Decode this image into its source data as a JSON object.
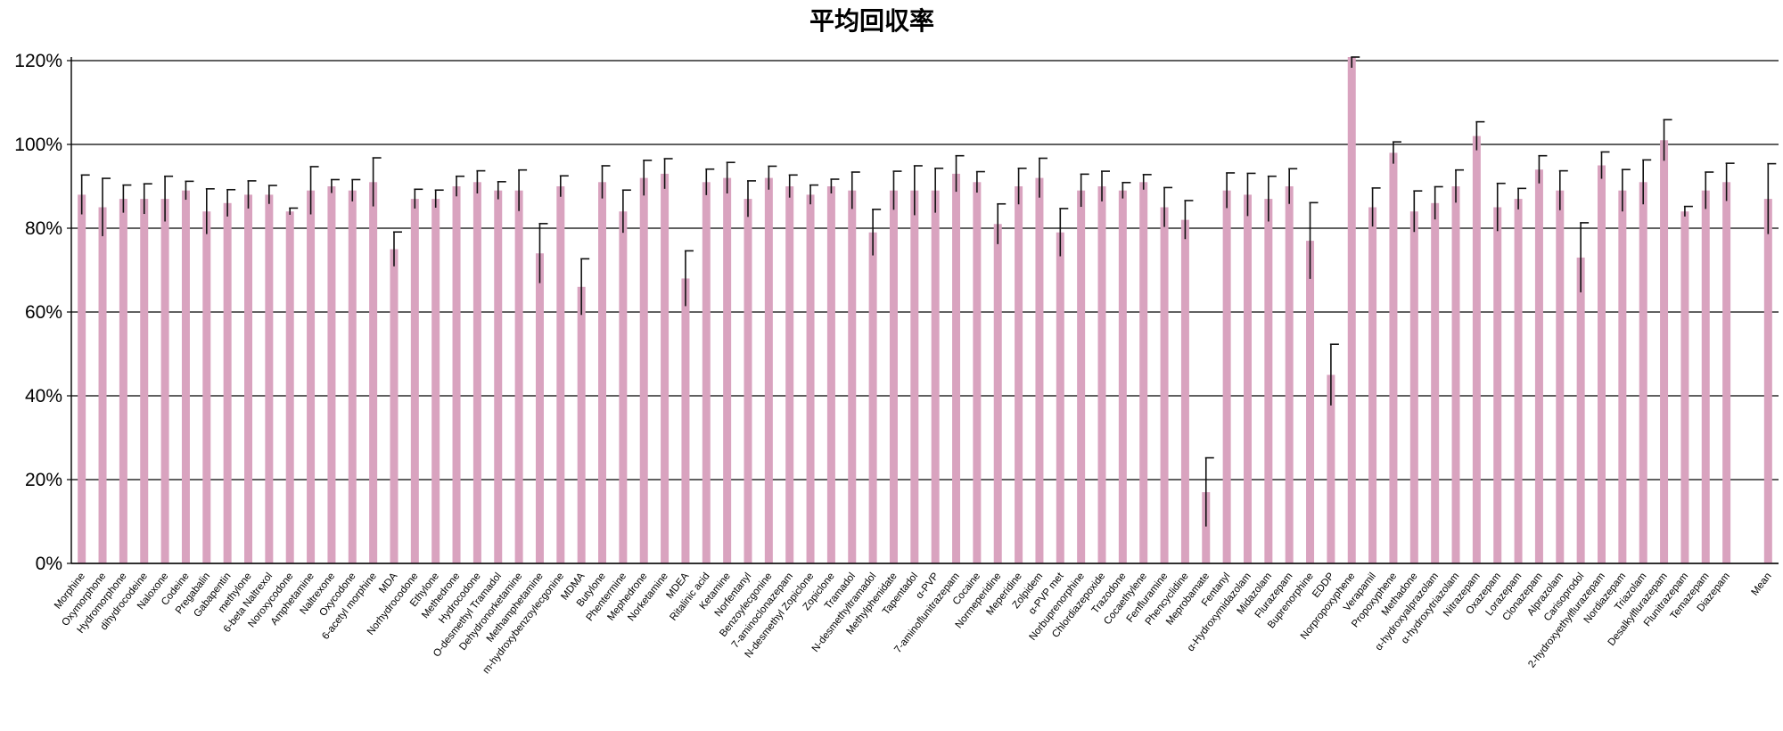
{
  "chart_data": {
    "type": "bar",
    "title": "平均回収率",
    "xlabel": "",
    "ylabel": "",
    "ylim": [
      0,
      120
    ],
    "y_ticks": [
      "0%",
      "20%",
      "40%",
      "60%",
      "80%",
      "100%",
      "120%"
    ],
    "grid": true,
    "legend": "none",
    "bar_color": "#d9a3bf",
    "error_bar_color": "#111111",
    "categories": [
      "Morphine",
      "Oxymorphone",
      "Hydromorphone",
      "dihydrocodeine",
      "Naloxone",
      "Codeine",
      "Pregabalin",
      "Gabapentin",
      "methylone",
      "6-beta Naltrexol",
      "Noroxycodone",
      "Amphetamine",
      "Naltrexone",
      "Oxycodone",
      "6-acetyl morphine",
      "MDA",
      "Norhydrocodone",
      "Ethylone",
      "Methedrone",
      "Hydrocodone",
      "O-desmethyl Tramadol",
      "Dehydronorketamine",
      "Methamphetamine",
      "m-hydroxybenzoylecgonine",
      "MDMA",
      "Butylone",
      "Phentermine",
      "Mephedrone",
      "Norketamine",
      "MDEA",
      "Ritalinic acid",
      "Ketamine",
      "Norfentanyl",
      "Benzoylecgonine",
      "7-aminoclonazepam",
      "N-desmethyl Zopiclone",
      "Zopiclone",
      "Tramadol",
      "N-desmethyltramadol",
      "Methylphenidate",
      "Tapentadol",
      "α-PVP",
      "7-aminoflunitrazepam",
      "Cocaine",
      "Normeperidine",
      "Meperidine",
      "Zolpidem",
      "α-PVP met",
      "Norbuprenorphine",
      "Chlordiazepoxide",
      "Trazodone",
      "Cocaethylene",
      "Fenfluramine",
      "Phencyclidine",
      "Meprobamate",
      "Fentanyl",
      "α-Hydroxymidazolam",
      "Midazolam",
      "Flurazepam",
      "Buprenorphine",
      "EDDP",
      "Norpropoxyphene",
      "Verapamil",
      "Propoxyphene",
      "Methadone",
      "α-hydroxyalprazolam",
      "α-hydroxytriazolam",
      "Nitrazepam",
      "Oxazepam",
      "Lorazepam",
      "Clonazepam",
      "Alprazolam",
      "Carisoprodol",
      "2-hydroxyethylflurazepam",
      "Nordiazepam",
      "Triazolam",
      "Desalkylflurazepam",
      "Flunitrazepam",
      "Temazepam",
      "Diazepam",
      "",
      "Mean"
    ],
    "values": [
      88,
      85,
      87,
      87,
      87,
      89,
      84,
      86,
      88,
      88,
      84,
      89,
      90,
      89,
      91,
      75,
      87,
      87,
      90,
      91,
      89,
      89,
      74,
      90,
      66,
      91,
      84,
      92,
      93,
      68,
      91,
      92,
      87,
      92,
      90,
      88,
      90,
      89,
      79,
      89,
      89,
      89,
      93,
      91,
      81,
      90,
      92,
      79,
      89,
      90,
      89,
      91,
      85,
      82,
      17,
      89,
      88,
      87,
      90,
      77,
      45,
      121,
      85,
      98,
      84,
      86,
      90,
      102,
      85,
      87,
      94,
      89,
      73,
      95,
      89,
      91,
      101,
      84,
      89,
      91,
      null,
      87
    ],
    "errors": [
      4.7,
      6.9,
      3.3,
      3.6,
      5.4,
      2.2,
      5.4,
      3.2,
      3.3,
      2.2,
      0.8,
      5.7,
      1.6,
      2.6,
      5.8,
      4.1,
      2.3,
      2.1,
      2.4,
      2.7,
      2.1,
      4.9,
      7.1,
      2.5,
      6.7,
      3.9,
      5.1,
      4.2,
      3.6,
      6.6,
      3.1,
      3.7,
      4.3,
      2.8,
      2.7,
      2.3,
      1.7,
      4.4,
      5.5,
      4.6,
      5.9,
      5.3,
      4.3,
      2.5,
      4.8,
      4.3,
      4.7,
      5.7,
      3.9,
      3.6,
      1.9,
      1.8,
      4.7,
      4.6,
      8.2,
      4.2,
      5.1,
      5.4,
      4.2,
      9.1,
      7.3,
      2.7,
      4.6,
      2.6,
      4.9,
      3.9,
      3.9,
      3.4,
      5.7,
      2.5,
      3.3,
      4.7,
      8.3,
      3.2,
      5.0,
      5.3,
      4.9,
      1.2,
      4.4,
      4.5,
      null,
      8.4
    ]
  }
}
